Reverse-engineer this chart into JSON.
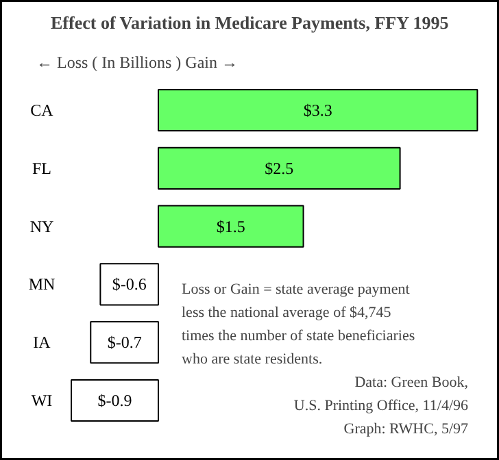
{
  "chart_data": {
    "type": "bar",
    "orientation": "horizontal",
    "title": "Effect of Variation in Medicare Payments, FFY 1995",
    "subtitle": "← Loss  ( In Billions )  Gain →",
    "categories": [
      "CA",
      "FL",
      "NY",
      "MN",
      "IA",
      "WI"
    ],
    "values": [
      3.3,
      2.5,
      1.5,
      -0.6,
      -0.7,
      -0.9
    ],
    "value_labels": [
      "$3.3",
      "$2.5",
      "$1.5",
      "$-0.6",
      "$-0.7",
      "$-0.9"
    ],
    "colors": [
      "#66ff66",
      "#66ff66",
      "#66ff66",
      "#ffffff",
      "#ffffff",
      "#ffffff"
    ],
    "annotations": [
      "Loss or Gain = state average payment\nless the national average of $4,745\ntimes the number of state beneficiaries\nwho are state residents.",
      "Data: Green Book,\nU.S. Printing Office, 11/4/96\nGraph: RWHC, 5/97"
    ],
    "grid": false
  }
}
